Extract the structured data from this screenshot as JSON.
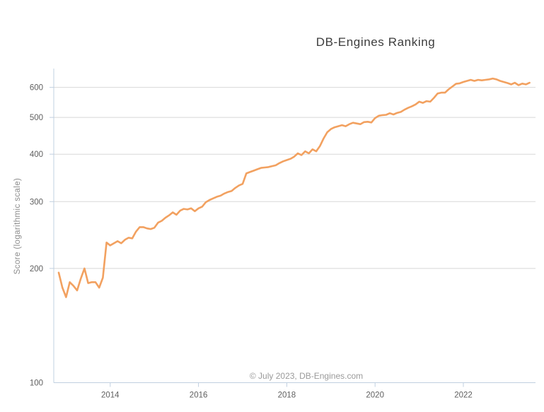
{
  "title": "DB-Engines Ranking",
  "footer": "© July 2023, DB-Engines.com",
  "colors": {
    "line": "#f2a160",
    "axis": "#c0d0e0",
    "grid": "#d8d8d8",
    "title_text": "#3d3d3d",
    "tick_text": "#5f5f5f",
    "y_title_text": "#8c8c8c",
    "footer_text": "#9a9a9a"
  },
  "chart_data": {
    "type": "line",
    "title": "DB-Engines Ranking",
    "xlabel": "",
    "ylabel": "Score (logarithmic scale)",
    "yscale": "log",
    "ylim": [
      100,
      670
    ],
    "yticks": [
      100,
      200,
      300,
      400,
      500,
      600
    ],
    "xticks_years": [
      2014,
      2016,
      2018,
      2020,
      2022
    ],
    "grid": true,
    "legend": false,
    "footer": "© July 2023, DB-Engines.com",
    "line_color": "#f2a160",
    "series": [
      {
        "name": "score",
        "start": "2012-11",
        "end": "2023-07",
        "interval": "month",
        "values": [
          195,
          178,
          168,
          184,
          180,
          175,
          188,
          200,
          183,
          184,
          184,
          178,
          189,
          234,
          230,
          233,
          236,
          233,
          238,
          241,
          240,
          250,
          257,
          257,
          255,
          254,
          256,
          264,
          267,
          272,
          276,
          281,
          277,
          284,
          287,
          286,
          288,
          283,
          288,
          291,
          299,
          303,
          306,
          309,
          311,
          315,
          318,
          320,
          326,
          331,
          334,
          356,
          359,
          362,
          365,
          368,
          369,
          370,
          372,
          374,
          379,
          383,
          386,
          389,
          394,
          402,
          398,
          407,
          402,
          412,
          407,
          420,
          440,
          457,
          466,
          471,
          474,
          477,
          474,
          480,
          484,
          482,
          480,
          486,
          487,
          485,
          498,
          505,
          507,
          508,
          513,
          509,
          514,
          517,
          524,
          530,
          535,
          541,
          550,
          546,
          552,
          550,
          563,
          578,
          581,
          581,
          593,
          603,
          613,
          615,
          620,
          624,
          628,
          624,
          628,
          626,
          628,
          630,
          633,
          630,
          624,
          620,
          616,
          611,
          617,
          608,
          614,
          611,
          617
        ]
      }
    ]
  }
}
